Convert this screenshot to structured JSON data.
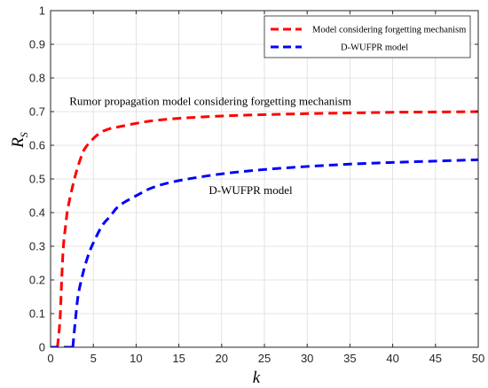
{
  "chart_data": {
    "type": "line",
    "xlabel": "k",
    "ylabel_main": "R",
    "ylabel_sub": "S",
    "xlim": [
      0,
      50
    ],
    "ylim": [
      0,
      1
    ],
    "xticks": [
      0,
      5,
      10,
      15,
      20,
      25,
      30,
      35,
      40,
      45,
      50
    ],
    "yticks": [
      0,
      0.1,
      0.2,
      0.3,
      0.4,
      0.5,
      0.6,
      0.7,
      0.8,
      0.9,
      1
    ],
    "ytick_labels": [
      "0",
      "0.1",
      "0.2",
      "0.3",
      "0.4",
      "0.5",
      "0.6",
      "0.7",
      "0.8",
      "0.9",
      "1"
    ],
    "grid": true,
    "legend_position": "top-right",
    "series": [
      {
        "name": "Model considering forgetting mechanism",
        "color": "#ff0000",
        "style": "dashed",
        "x": [
          0.8,
          1.1,
          1.3,
          1.5,
          1.8,
          2,
          2.5,
          3,
          3.5,
          4,
          5,
          6,
          7,
          8,
          10,
          12,
          15,
          20,
          25,
          30,
          35,
          40,
          45,
          50
        ],
        "y": [
          0,
          0.08,
          0.2,
          0.3,
          0.37,
          0.41,
          0.47,
          0.52,
          0.56,
          0.59,
          0.62,
          0.64,
          0.65,
          0.655,
          0.665,
          0.673,
          0.68,
          0.687,
          0.691,
          0.694,
          0.696,
          0.698,
          0.699,
          0.7
        ]
      },
      {
        "name": "D-WUFPR model",
        "color": "#0000ff",
        "style": "dashed",
        "x": [
          2.6,
          2.9,
          3.2,
          3.6,
          4,
          4.5,
          5,
          6,
          7,
          8,
          10,
          12,
          15,
          20,
          25,
          30,
          35,
          40,
          45,
          50
        ],
        "y": [
          0,
          0.08,
          0.15,
          0.2,
          0.24,
          0.28,
          0.31,
          0.36,
          0.39,
          0.42,
          0.45,
          0.475,
          0.495,
          0.515,
          0.528,
          0.537,
          0.544,
          0.549,
          0.553,
          0.557
        ]
      }
    ],
    "annotations": [
      {
        "text": "Rumor propagation model considering forgetting mechanism",
        "x": 2.2,
        "y": 0.72
      },
      {
        "text": "D-WUFPR model",
        "x": 18.5,
        "y": 0.455
      }
    ]
  }
}
